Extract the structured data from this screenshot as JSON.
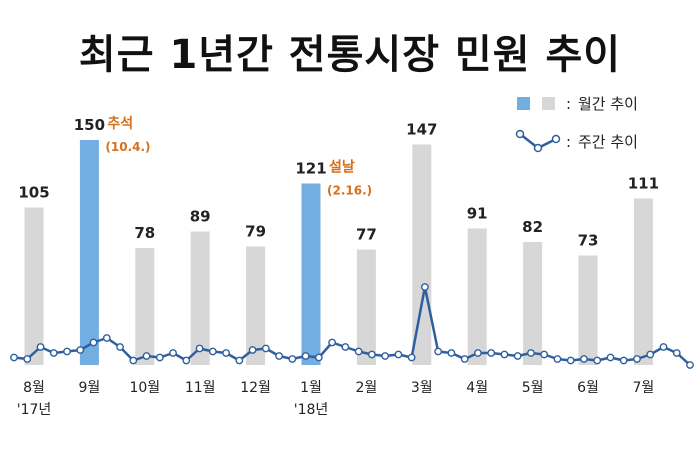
{
  "chart_data": {
    "type": "bar",
    "title": "최근 1년간 전통시장 민원 추이",
    "categories": [
      "8월",
      "9월",
      "10월",
      "11월",
      "12월",
      "1월",
      "2월",
      "3월",
      "4월",
      "5월",
      "6월",
      "7월"
    ],
    "year_labels": [
      "'17년",
      "",
      "",
      "",
      "",
      "'18년",
      "",
      "",
      "",
      "",
      "",
      ""
    ],
    "values": [
      105,
      150,
      78,
      89,
      79,
      121,
      77,
      147,
      91,
      82,
      73,
      111
    ],
    "highlighted": [
      false,
      true,
      false,
      false,
      false,
      true,
      false,
      false,
      false,
      false,
      false,
      false
    ],
    "annotations": [
      {
        "index": 1,
        "name": "추석",
        "date": "(10.4.)"
      },
      {
        "index": 5,
        "name": "설날",
        "date": "(2.16.)"
      }
    ],
    "weekly_series": {
      "name": "주간 추이",
      "values": [
        5,
        4,
        12,
        8,
        9,
        10,
        15,
        18,
        12,
        3,
        6,
        5,
        8,
        3,
        11,
        9,
        8,
        3,
        10,
        11,
        6,
        4,
        6,
        5,
        15,
        12,
        9,
        7,
        6,
        7,
        5,
        52,
        9,
        8,
        4,
        8,
        8,
        7,
        6,
        8,
        7,
        4,
        3,
        4,
        3,
        5,
        3,
        4,
        7,
        12,
        8,
        0
      ],
      "ylim": [
        0,
        150
      ]
    },
    "legend": {
      "monthly": "월간 추이",
      "weekly": "주간 추이",
      "separator": ":"
    },
    "colors": {
      "bar": "#d7d7d7",
      "highlight": "#73aee2",
      "line": "#2f5f9e",
      "annotation": "#d5701c"
    },
    "ylim": [
      0,
      150
    ],
    "grid": false
  }
}
